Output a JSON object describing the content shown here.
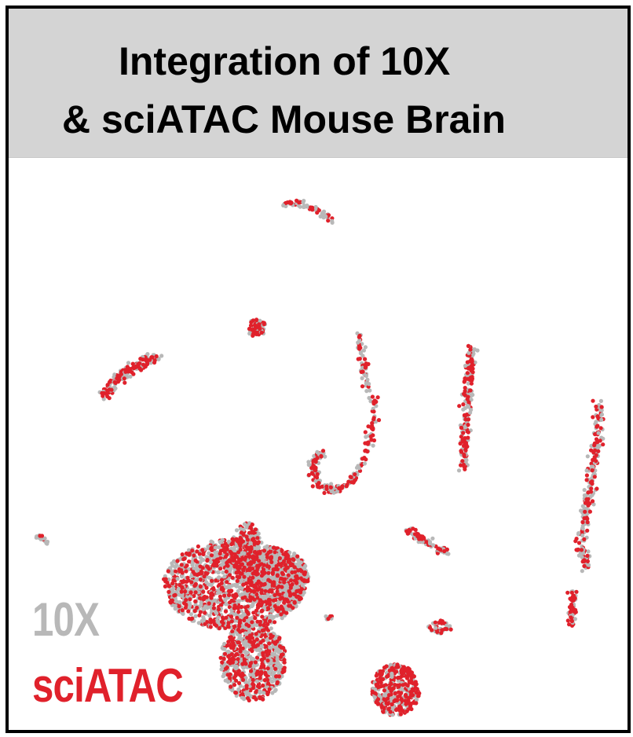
{
  "title": {
    "line1": "Integration of 10X",
    "line2": "& sciATAC Mouse Brain"
  },
  "colors": {
    "tenx": "#b8b8b8",
    "sciatac": "#e0212b",
    "title_bg": "#d4d4d4",
    "border": "#000000"
  },
  "chart_data": {
    "type": "scatter",
    "title": "Integration of 10X & sciATAC Mouse Brain",
    "xlabel": "",
    "ylabel": "",
    "xlim": [
      0,
      100
    ],
    "ylim": [
      0,
      100
    ],
    "grid": false,
    "legend": {
      "placement": "bottom-left",
      "entries": [
        "10X",
        "sciATAC"
      ]
    },
    "series": [
      {
        "name": "10X",
        "color": "#b8b8b8"
      },
      {
        "name": "sciATAC",
        "color": "#e0212b"
      }
    ],
    "clusters": [
      {
        "id": "top-arc",
        "path": [
          [
            44.7,
            92.1
          ],
          [
            46.5,
            92.5
          ],
          [
            47.8,
            92.0
          ],
          [
            51.0,
            90.5
          ],
          [
            52.3,
            89.2
          ]
        ],
        "spread": 0.5,
        "n": 70,
        "red_frac": 0.35
      },
      {
        "id": "upper-left-streak",
        "path": [
          [
            15.3,
            58.5
          ],
          [
            17.5,
            61.5
          ],
          [
            20.5,
            63.7
          ],
          [
            24.2,
            65.5
          ]
        ],
        "spread": 0.8,
        "n": 170,
        "red_frac": 0.55
      },
      {
        "id": "small-blob-center-top",
        "ellipse": [
          40.0,
          70.5,
          1.6,
          1.5
        ],
        "n": 75,
        "red_frac": 0.5
      },
      {
        "id": "hook-curve",
        "path": [
          [
            56.6,
            69.7
          ],
          [
            57.3,
            63.5
          ],
          [
            59.2,
            55.7
          ],
          [
            58.0,
            49.0
          ],
          [
            55.5,
            44.0
          ],
          [
            52.5,
            41.7
          ],
          [
            50.0,
            43.5
          ],
          [
            49.0,
            46.6
          ],
          [
            50.7,
            48.8
          ]
        ],
        "spread": 0.75,
        "n": 260,
        "red_frac": 0.5
      },
      {
        "id": "vertical-streak-mid-right",
        "path": [
          [
            74.8,
            67.5
          ],
          [
            74.3,
            60.0
          ],
          [
            73.8,
            52.0
          ],
          [
            73.4,
            45.5
          ]
        ],
        "spread": 0.75,
        "n": 190,
        "red_frac": 0.5
      },
      {
        "id": "vertical-streak-far-right",
        "path": [
          [
            95.3,
            57.5
          ],
          [
            95.0,
            51.0
          ],
          [
            94.3,
            44.5
          ],
          [
            93.2,
            38.5
          ],
          [
            92.6,
            32.5
          ],
          [
            93.4,
            28.0
          ]
        ],
        "spread": 0.8,
        "n": 230,
        "red_frac": 0.45
      },
      {
        "id": "tiny-streak-left",
        "path": [
          [
            4.5,
            34.2
          ],
          [
            6.3,
            32.8
          ]
        ],
        "spread": 0.3,
        "n": 18,
        "red_frac": 0.1
      },
      {
        "id": "small-streak-center-right",
        "path": [
          [
            64.5,
            35.0
          ],
          [
            67.5,
            33.0
          ],
          [
            71.0,
            30.8
          ]
        ],
        "spread": 0.6,
        "n": 80,
        "red_frac": 0.45
      },
      {
        "id": "small-vertical-right",
        "path": [
          [
            91.2,
            24.0
          ],
          [
            90.9,
            18.5
          ]
        ],
        "spread": 0.6,
        "n": 55,
        "red_frac": 0.55
      },
      {
        "id": "small-blob-center-low",
        "ellipse": [
          69.5,
          18.0,
          2.1,
          1.2
        ],
        "n": 40,
        "red_frac": 0.5
      },
      {
        "id": "round-blob-bottom",
        "ellipse": [
          62.5,
          7.0,
          3.9,
          4.5
        ],
        "n": 380,
        "red_frac": 0.6
      },
      {
        "id": "large-cluster-left",
        "ellipse": [
          36.5,
          25.5,
          11.5,
          8.0
        ],
        "n": 1500,
        "red_frac": 0.4
      },
      {
        "id": "large-cluster-right-lobe",
        "ellipse": [
          43.0,
          26.5,
          5.5,
          5.5
        ],
        "n": 500,
        "red_frac": 0.4
      },
      {
        "id": "large-cluster-stem",
        "ellipse": [
          39.5,
          12.0,
          5.3,
          7.0
        ],
        "n": 700,
        "red_frac": 0.38
      },
      {
        "id": "large-cluster-stem-top",
        "ellipse": [
          38.5,
          31.0,
          2.5,
          5.5
        ],
        "n": 250,
        "red_frac": 0.45
      },
      {
        "id": "stray-right-of-large",
        "ellipse": [
          51.8,
          19.7,
          0.6,
          0.6
        ],
        "n": 8,
        "red_frac": 0.4
      }
    ]
  },
  "legend": {
    "tenx_label": "10X",
    "sciatac_label": "sciATAC"
  }
}
